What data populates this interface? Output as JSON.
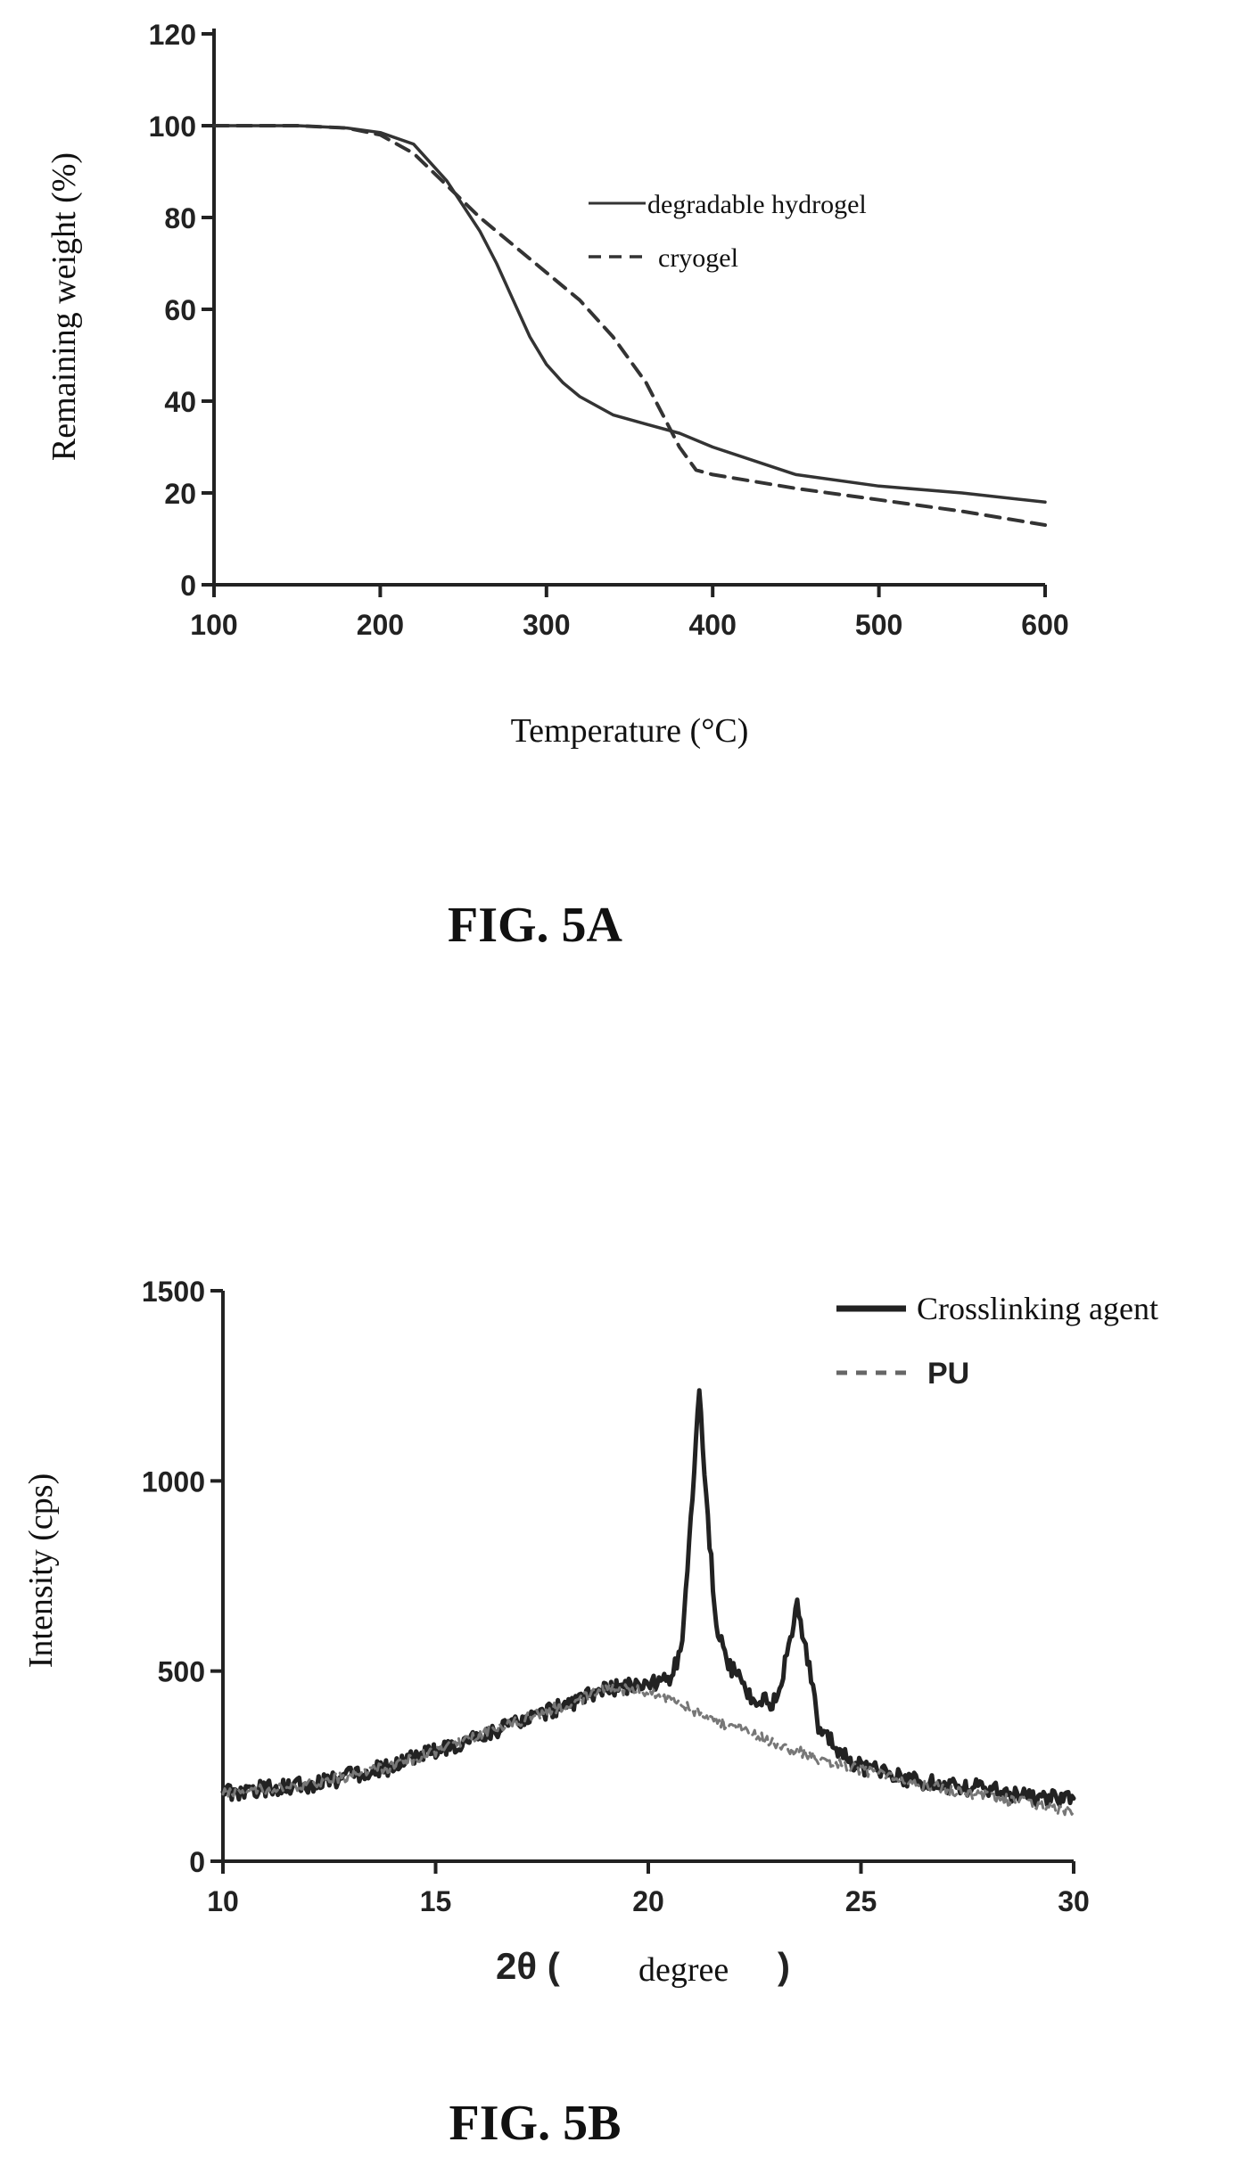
{
  "chart_data": [
    {
      "type": "line",
      "caption": "FIG. 5A",
      "xlabel": "Temperature (°C)",
      "ylabel": "Remaining weight (%)",
      "xlim": [
        100,
        600
      ],
      "ylim": [
        0,
        120
      ],
      "xticks": [
        100,
        200,
        300,
        400,
        500,
        600
      ],
      "yticks": [
        0,
        20,
        40,
        60,
        80,
        100,
        120
      ],
      "xtick_labels": [
        "100",
        "200",
        "300",
        "400",
        "500",
        "600"
      ],
      "ytick_labels": [
        "0",
        "20",
        "40",
        "60",
        "80",
        "100",
        "120"
      ],
      "legend_position": "upper-right",
      "series": [
        {
          "name": "degradable hydrogel",
          "style": "solid",
          "x": [
            100,
            150,
            180,
            200,
            220,
            240,
            260,
            270,
            280,
            290,
            300,
            310,
            320,
            340,
            360,
            380,
            400,
            450,
            500,
            550,
            600
          ],
          "y": [
            100,
            100,
            99.5,
            98.5,
            96,
            88,
            77,
            70,
            62,
            54,
            48,
            44,
            41,
            37,
            35,
            33,
            30,
            24,
            21.5,
            20,
            18
          ]
        },
        {
          "name": "cryogel",
          "style": "dashed",
          "x": [
            100,
            150,
            180,
            200,
            220,
            240,
            260,
            280,
            300,
            320,
            340,
            360,
            370,
            380,
            390,
            400,
            450,
            500,
            550,
            600
          ],
          "y": [
            100,
            100,
            99.5,
            98,
            94,
            87,
            80,
            74,
            68,
            62,
            54,
            44,
            37,
            30,
            25,
            24,
            21,
            18.5,
            16,
            13
          ]
        }
      ]
    },
    {
      "type": "line",
      "caption": "FIG. 5B",
      "xlabel_symbol": "2θ (",
      "xlabel_unit": "degree",
      "xlabel_close": ")",
      "ylabel": "Intensity (cps)",
      "xlim": [
        10,
        30
      ],
      "ylim": [
        0,
        1500
      ],
      "xticks": [
        10,
        15,
        20,
        25,
        30
      ],
      "yticks": [
        0,
        500,
        1000,
        1500
      ],
      "xtick_labels": [
        "10",
        "15",
        "20",
        "25",
        "30"
      ],
      "ytick_labels": [
        "0",
        "500",
        "1000",
        "1500"
      ],
      "legend_position": "upper-right",
      "series": [
        {
          "name": "Crosslinking agent",
          "style": "solid",
          "x": [
            10,
            12,
            14,
            16,
            18,
            19,
            20,
            20.5,
            20.8,
            21.0,
            21.2,
            21.4,
            21.6,
            21.8,
            22.0,
            22.5,
            23.0,
            23.3,
            23.5,
            23.7,
            24.0,
            24.5,
            25,
            26,
            27,
            28,
            29,
            30
          ],
          "y": [
            180,
            200,
            250,
            330,
            410,
            450,
            470,
            480,
            560,
            900,
            1230,
            900,
            620,
            540,
            500,
            420,
            420,
            560,
            670,
            560,
            360,
            280,
            250,
            220,
            200,
            190,
            170,
            165
          ]
        },
        {
          "name": "PU",
          "style": "dashed",
          "x": [
            10,
            12,
            14,
            16,
            18,
            19,
            20,
            21,
            22,
            23,
            24,
            25,
            26,
            27,
            28,
            29,
            30
          ],
          "y": [
            180,
            200,
            250,
            330,
            410,
            450,
            450,
            400,
            350,
            310,
            270,
            240,
            210,
            190,
            170,
            150,
            130
          ]
        }
      ]
    }
  ]
}
